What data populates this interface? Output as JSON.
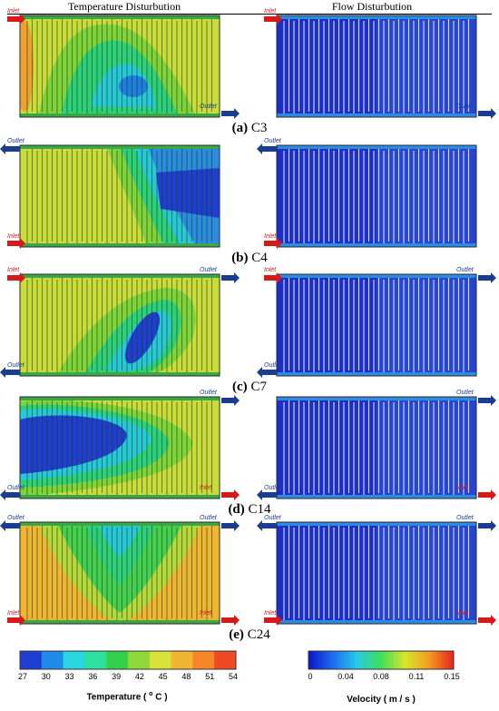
{
  "headers": {
    "temperature": "Temperature Disturbution",
    "flow": "Flow Disturbution"
  },
  "panels": [
    {
      "letter": "(a)",
      "name": "C3",
      "temp_ports": {
        "top_left": "Inlet",
        "bottom_right": "Outlet"
      },
      "flow_ports": {
        "top_left": "Inlet",
        "bottom_right": "Outlet"
      }
    },
    {
      "letter": "(b)",
      "name": "C4",
      "temp_ports": {
        "top_left": "Outlet",
        "bottom_left": "Inlet"
      },
      "flow_ports": {
        "top_left": "Outlet",
        "bottom_left": "Inlet"
      }
    },
    {
      "letter": "(c)",
      "name": "C7",
      "temp_ports": {
        "top_left": "Inlet",
        "top_right": "Outlet",
        "bottom_left": "Outlet"
      },
      "flow_ports": {
        "top_left": "Inlet",
        "top_right": "Outlet",
        "bottom_left": "Outlet"
      }
    },
    {
      "letter": "(d)",
      "name": "C14",
      "temp_ports": {
        "top_right": "Outlet",
        "bottom_left": "Outlet",
        "bottom_right": "Inlet"
      },
      "flow_ports": {
        "top_right": "Outlet",
        "bottom_left": "Outlet",
        "bottom_right": "Inlet"
      }
    },
    {
      "letter": "(e)",
      "name": "C24",
      "temp_ports": {
        "top_left": "Outlet",
        "top_right": "Outlet",
        "bottom_left": "Inlet",
        "bottom_right": "Inlet"
      },
      "flow_ports": {
        "top_left": "Outlet",
        "top_right": "Outlet",
        "bottom_left": "Inlet",
        "bottom_right": "Inlet"
      }
    }
  ],
  "temperature_bar": {
    "title": "Temperature ( ",
    "unit_sup": "o",
    "unit_tail": " C )",
    "ticks": [
      "27",
      "30",
      "33",
      "36",
      "39",
      "42",
      "45",
      "48",
      "51",
      "54"
    ],
    "colors": [
      "#1f3fd0",
      "#1f8be6",
      "#2ad6e0",
      "#2ee0a0",
      "#35d04b",
      "#8fd83a",
      "#d8e23a",
      "#f0b632",
      "#f5872a",
      "#ee4b22"
    ]
  },
  "velocity_bar": {
    "title": "Velocity ( m / s )",
    "ticks": [
      "0",
      "0.04",
      "0.08",
      "0.11",
      "0.15"
    ],
    "colors": [
      "#0a14c8",
      "#1f6bf0",
      "#27c9e8",
      "#3ee05a",
      "#d8e52c",
      "#f59a22",
      "#e8221c"
    ]
  }
}
